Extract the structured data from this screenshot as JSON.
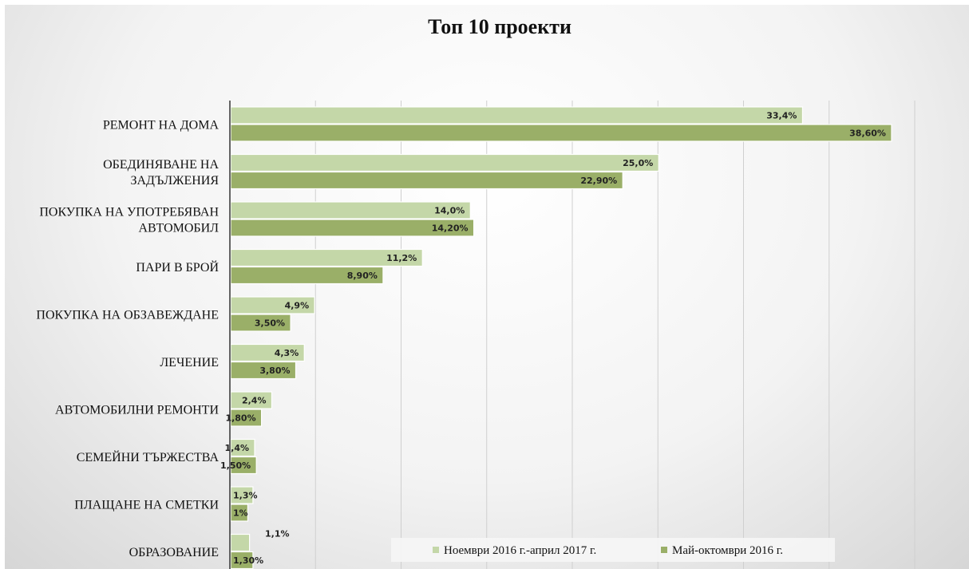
{
  "chart_data": {
    "type": "bar",
    "orientation": "horizontal",
    "title": "Топ 10 проекти",
    "categories": [
      [
        "РЕМОНТ НА ДОМА"
      ],
      [
        "ОБЕДИНЯВАНЕ НА",
        "ЗАДЪЛЖЕНИЯ"
      ],
      [
        "ПОКУПКА НА УПОТРЕБЯВАН",
        "АВТОМОБИЛ"
      ],
      [
        "ПАРИ В БРОЙ"
      ],
      [
        "ПОКУПКА НА ОБЗАВЕЖДАНЕ"
      ],
      [
        "ЛЕЧЕНИЕ"
      ],
      [
        "АВТОМОБИЛНИ РЕМОНТИ"
      ],
      [
        "СЕМЕЙНИ ТЪРЖЕСТВА"
      ],
      [
        "ПЛАЩАНЕ НА СМЕТКИ"
      ],
      [
        "ОБРАЗОВАНИЕ"
      ]
    ],
    "series": [
      {
        "name": "Ноември 2016 г.-април 2017 г.",
        "color": "#c4d7a8",
        "values": [
          33.4,
          25.0,
          14.0,
          11.2,
          4.9,
          4.3,
          2.4,
          1.4,
          1.3,
          1.1
        ],
        "labels": [
          "33,4%",
          "25,0%",
          "14,0%",
          "11,2%",
          "4,9%",
          "4,3%",
          "2,4%",
          "1,4%",
          "1,3%",
          "1,1%"
        ]
      },
      {
        "name": "Май-октомври 2016 г.",
        "color": "#9aaf68",
        "values": [
          38.6,
          22.9,
          14.2,
          8.9,
          3.5,
          3.8,
          1.8,
          1.5,
          1.0,
          1.3
        ],
        "labels": [
          "38,60%",
          "22,90%",
          "14,20%",
          "8,90%",
          "3,50%",
          "3,80%",
          "1,80%",
          "1,50%",
          "1%",
          "1,30%"
        ]
      }
    ],
    "xlim": [
      0,
      43
    ],
    "x_gridlines": [
      5,
      10,
      15,
      20,
      25,
      30,
      35,
      40
    ],
    "grid": true,
    "legend_position": "bottom-center"
  }
}
